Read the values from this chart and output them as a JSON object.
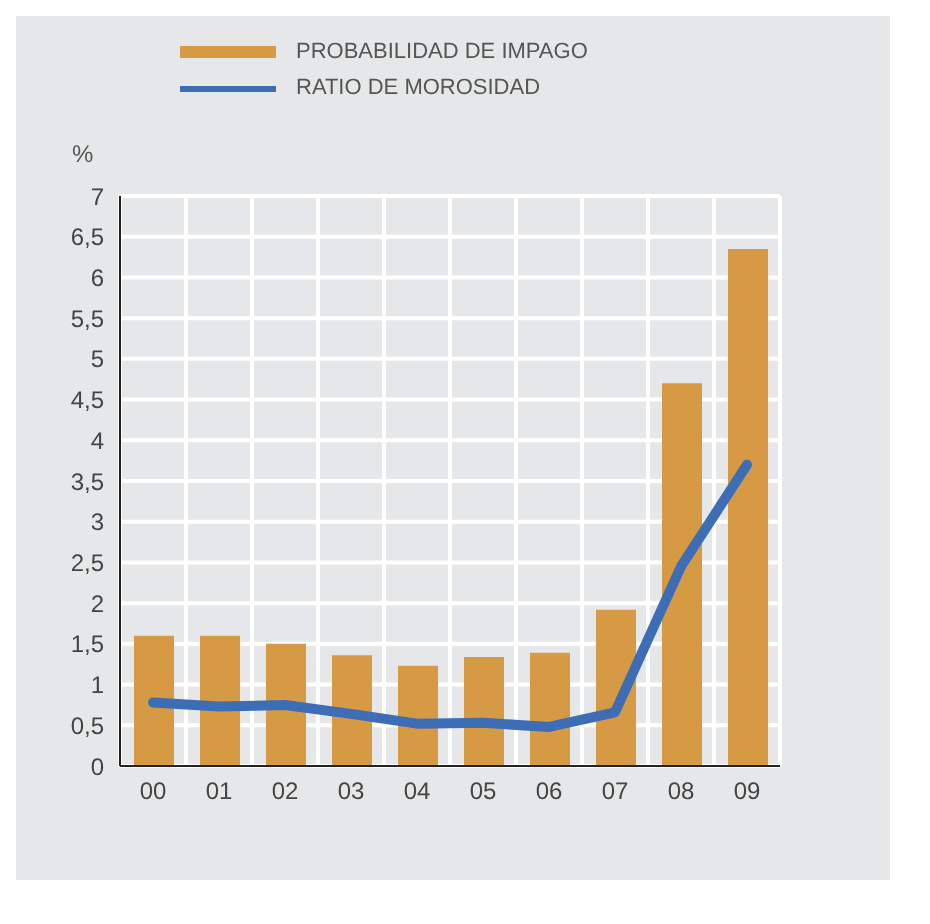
{
  "chart_data": {
    "type": "bar",
    "ylabel": "%",
    "categories": [
      "00",
      "01",
      "02",
      "03",
      "04",
      "05",
      "06",
      "07",
      "08",
      "09"
    ],
    "series": [
      {
        "name": "PROBABILIDAD DE IMPAGO",
        "color": "#d69a45",
        "values": [
          1.6,
          1.6,
          1.5,
          1.36,
          1.23,
          1.34,
          1.39,
          1.92,
          4.7,
          6.35
        ]
      },
      {
        "name": "RATIO DE MOROSIDAD",
        "type": "line",
        "color": "#3d6db5",
        "values": [
          0.78,
          0.73,
          0.75,
          0.64,
          0.52,
          0.53,
          0.48,
          0.66,
          2.45,
          3.7
        ]
      }
    ],
    "ylim": [
      0,
      7
    ],
    "yticks": [
      0,
      {
        "value": 0.5,
        "label": "0,5"
      },
      1,
      {
        "value": 1.5,
        "label": "1,5"
      },
      2,
      {
        "value": 2.5,
        "label": "2,5"
      },
      3,
      {
        "value": 3.5,
        "label": "3,5"
      },
      4,
      {
        "value": 4.5,
        "label": "4,5"
      },
      5,
      {
        "value": 5.5,
        "label": "5,5"
      },
      6,
      {
        "value": 6.5,
        "label": "6,5"
      },
      7
    ],
    "grid": true,
    "legend": "top left",
    "marker": "none",
    "line_style": "solid"
  }
}
